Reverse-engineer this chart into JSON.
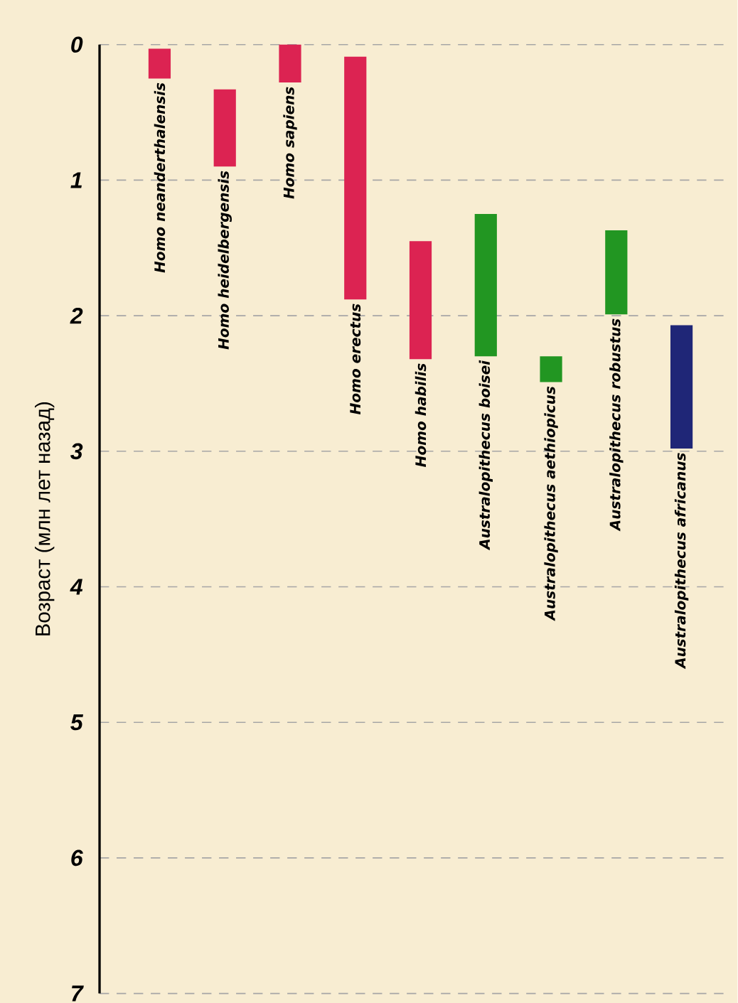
{
  "chart_data": {
    "type": "bar",
    "ylabel": "Возраст (млн лет назад)",
    "categories": [
      "Homo neanderthalensis",
      "Homo heidelbergensis",
      "Homo sapiens",
      "Homo erectus",
      "Homo habilis",
      "Australopithecus boisei",
      "Australopithecus aethiopicus",
      "Australopithecus robustus",
      "Australopithecus africanus"
    ],
    "base": [
      0.03,
      0.33,
      0.0,
      0.09,
      1.45,
      1.25,
      2.3,
      1.37,
      2.07
    ],
    "values": [
      0.22,
      0.57,
      0.28,
      1.79,
      0.87,
      1.05,
      0.19,
      0.62,
      0.91
    ],
    "colors": [
      "#dc2352",
      "#dc2352",
      "#dc2352",
      "#dc2352",
      "#dc2352",
      "#229622",
      "#229622",
      "#229622",
      "#1f2677"
    ],
    "ylim": [
      7,
      0
    ],
    "yticks": [
      0,
      1,
      2,
      3,
      4,
      5,
      6,
      7
    ],
    "grid": "y"
  }
}
